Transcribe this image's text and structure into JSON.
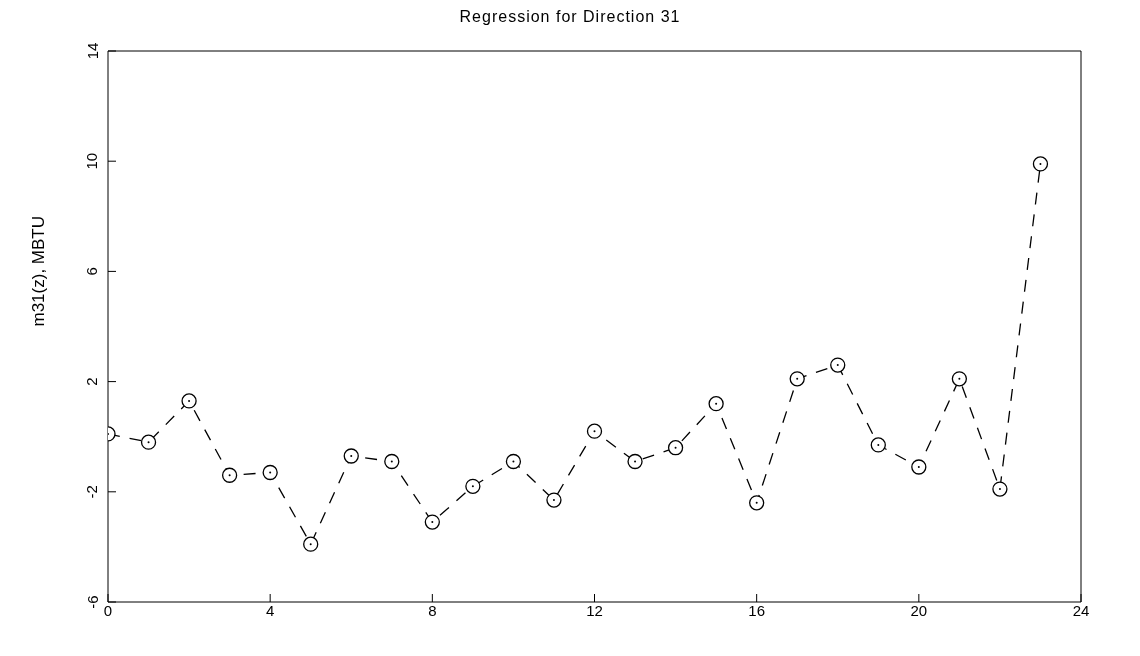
{
  "chart_data": {
    "type": "line",
    "title": "Regression for Direction 31",
    "ylabel": "m31(z), MBTU",
    "x": [
      0,
      1,
      2,
      3,
      4,
      5,
      6,
      7,
      8,
      9,
      10,
      11,
      12,
      13,
      14,
      15,
      16,
      17,
      18,
      19,
      20,
      21,
      22,
      23
    ],
    "series": [
      {
        "color": "#000000",
        "values": [
          0.1,
          -0.2,
          1.3,
          -1.4,
          -1.3,
          -3.9,
          -0.7,
          -0.9,
          -3.1,
          -1.8,
          -0.9,
          -2.3,
          0.2,
          -0.9,
          -0.4,
          1.2,
          -2.4,
          2.1,
          2.6,
          -0.3,
          -1.1,
          2.1,
          -1.9,
          9.9
        ]
      }
    ],
    "xlim": [
      0,
      24
    ],
    "xticks": [
      0,
      4,
      8,
      12,
      16,
      20,
      24
    ],
    "ylim": [
      -6,
      14
    ],
    "yticks": [
      -6,
      -2,
      2,
      6,
      10,
      14
    ],
    "grid": false,
    "legend": false,
    "marker": "circle",
    "line_style": "dashed"
  }
}
